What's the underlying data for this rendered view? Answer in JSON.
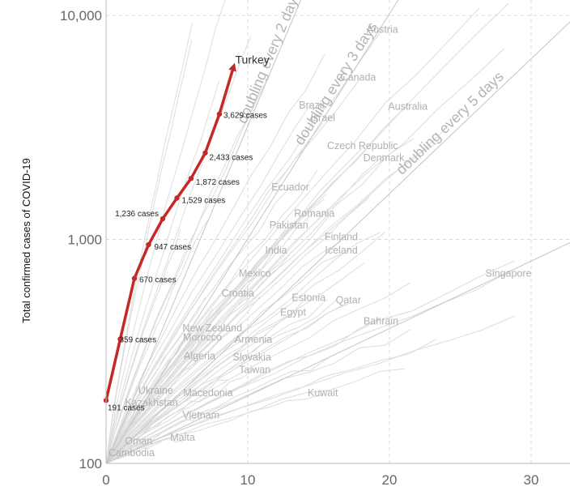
{
  "chart_data": {
    "type": "line",
    "y_scale": "log",
    "ylabel": "Total confirmed cases of COVID-19",
    "xlim": [
      0,
      33
    ],
    "ylim": [
      100,
      13000
    ],
    "x_ticks": [
      {
        "value": 0,
        "label": "0"
      },
      {
        "value": 10,
        "label": "10"
      },
      {
        "value": 20,
        "label": "20"
      },
      {
        "value": 30,
        "label": "30"
      }
    ],
    "y_ticks": [
      {
        "value": 100,
        "label": "100"
      },
      {
        "value": 1000,
        "label": "1,000"
      },
      {
        "value": 10000,
        "label": "10,000"
      }
    ],
    "grid": true,
    "highlight_color": "#c62828",
    "background_line_color": "#dcdcdc",
    "reference_line_color": "#c4c4c4",
    "highlight": {
      "name": "Turkey",
      "points": [
        {
          "x": 0,
          "y": 191,
          "label": "191 cases"
        },
        {
          "x": 1,
          "y": 359,
          "label": "359 cases"
        },
        {
          "x": 2,
          "y": 670,
          "label": "670 cases"
        },
        {
          "x": 3,
          "y": 947,
          "label": "947 cases"
        },
        {
          "x": 4,
          "y": 1236,
          "label": "1,236 cases"
        },
        {
          "x": 5,
          "y": 1529,
          "label": "1,529 cases"
        },
        {
          "x": 6,
          "y": 1872,
          "label": "1,872 cases"
        },
        {
          "x": 7,
          "y": 2433,
          "label": "2,433 cases"
        },
        {
          "x": 8,
          "y": 3629,
          "label": "3,629 cases"
        },
        {
          "x": 9,
          "y": 5900,
          "label": ""
        }
      ]
    },
    "reference_lines": [
      {
        "label": "doubling every 2 days",
        "days": 2
      },
      {
        "label": "doubling every 3 days",
        "days": 3
      },
      {
        "label": "doubling every 5 days",
        "days": 5
      },
      {
        "label": "doubling",
        "days": 10
      }
    ],
    "countries": [
      {
        "name": "Austria",
        "x": 19.5,
        "y": 8600
      },
      {
        "name": "Canada",
        "x": 17.8,
        "y": 5250
      },
      {
        "name": "Brazil",
        "x": 14.5,
        "y": 3950
      },
      {
        "name": "Israel",
        "x": 15.3,
        "y": 3470
      },
      {
        "name": "Australia",
        "x": 21.3,
        "y": 3900
      },
      {
        "name": "Czech Republic",
        "x": 18.1,
        "y": 2600
      },
      {
        "name": "Denmark",
        "x": 19.6,
        "y": 2300
      },
      {
        "name": "Ecuador",
        "x": 13.0,
        "y": 1700
      },
      {
        "name": "Romania",
        "x": 14.7,
        "y": 1300
      },
      {
        "name": "Pakistan",
        "x": 12.9,
        "y": 1150
      },
      {
        "name": "Finland",
        "x": 16.6,
        "y": 1020
      },
      {
        "name": "Iceland",
        "x": 16.6,
        "y": 890
      },
      {
        "name": "India",
        "x": 12.0,
        "y": 890
      },
      {
        "name": "Singapore",
        "x": 28.4,
        "y": 700
      },
      {
        "name": "Mexico",
        "x": 10.5,
        "y": 700
      },
      {
        "name": "Croatia",
        "x": 9.3,
        "y": 572
      },
      {
        "name": "Estonia",
        "x": 14.3,
        "y": 545
      },
      {
        "name": "Qatar",
        "x": 17.1,
        "y": 532
      },
      {
        "name": "Egypt",
        "x": 13.2,
        "y": 470
      },
      {
        "name": "Bahrain",
        "x": 19.4,
        "y": 428
      },
      {
        "name": "New Zealand",
        "x": 7.5,
        "y": 400
      },
      {
        "name": "Armenia",
        "x": 10.4,
        "y": 355
      },
      {
        "name": "Morocco",
        "x": 6.8,
        "y": 363
      },
      {
        "name": "Slovakia",
        "x": 10.3,
        "y": 296
      },
      {
        "name": "Algeria",
        "x": 6.6,
        "y": 300
      },
      {
        "name": "Taiwan",
        "x": 10.5,
        "y": 260
      },
      {
        "name": "Kuwait",
        "x": 15.3,
        "y": 205
      },
      {
        "name": "Ukraine",
        "x": 3.5,
        "y": 210
      },
      {
        "name": "Macedonia",
        "x": 7.2,
        "y": 205
      },
      {
        "name": "Kazakhstan",
        "x": 3.2,
        "y": 186
      },
      {
        "name": "Vietnam",
        "x": 6.7,
        "y": 163
      },
      {
        "name": "Malta",
        "x": 5.4,
        "y": 130
      },
      {
        "name": "Oman",
        "x": 2.3,
        "y": 125
      },
      {
        "name": "Cambodia",
        "x": 1.8,
        "y": 111
      }
    ]
  }
}
